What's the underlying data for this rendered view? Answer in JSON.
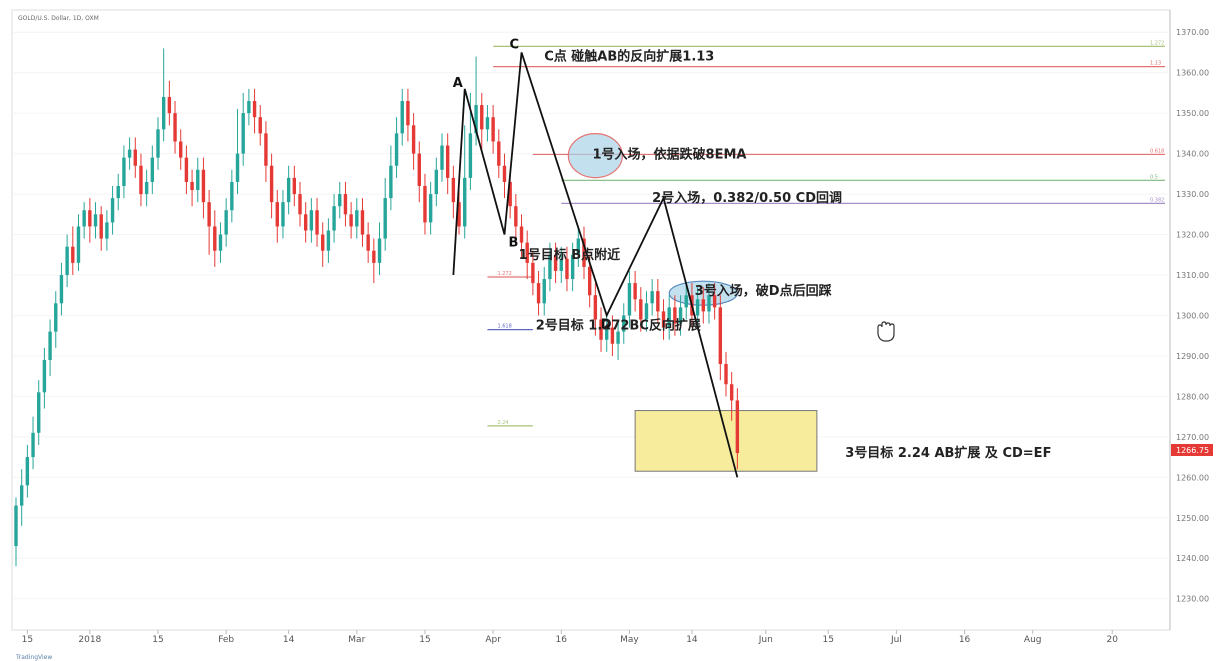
{
  "header": {
    "symbol": "GOLD/U.S. Dollar, 1D, OXM"
  },
  "footer": {
    "brand": "TradingView"
  },
  "price_tag": {
    "value": "1266.75",
    "color": "#e53935"
  },
  "colors": {
    "up": "#26a69a",
    "down": "#e53935",
    "zone": "#f6ec9c",
    "ellipse": "#a9d3e8"
  },
  "chart_data": {
    "type": "candlestick",
    "title": "GOLD/U.S. Dollar, 1D, OXM",
    "ylim": [
      1223,
      1375
    ],
    "y_ticks": [
      "1370.00",
      "1360.00",
      "1350.00",
      "1340.00",
      "1330.00",
      "1320.00",
      "1310.00",
      "1300.00",
      "1290.00",
      "1280.00",
      "1270.00",
      "1260.00",
      "1250.00",
      "1240.00",
      "1230.00"
    ],
    "y_tick_values": [
      1370,
      1360,
      1350,
      1340,
      1330,
      1320,
      1310,
      1300,
      1290,
      1280,
      1270,
      1260,
      1250,
      1240,
      1230
    ],
    "x_ticks": [
      "15",
      "2018",
      "15",
      "Feb",
      "14",
      "Mar",
      "15",
      "Apr",
      "16",
      "May",
      "14",
      "Jun",
      "15",
      "Jul",
      "16",
      "Aug",
      "20"
    ],
    "x_tick_index": [
      2,
      13,
      25,
      37,
      48,
      60,
      72,
      84,
      96,
      108,
      119,
      132,
      143,
      155,
      167,
      179,
      193
    ],
    "candles": [
      [
        1243,
        1253,
        1238,
        1255
      ],
      [
        1253,
        1258,
        1248,
        1262
      ],
      [
        1258,
        1265,
        1255,
        1268
      ],
      [
        1265,
        1271,
        1262,
        1275
      ],
      [
        1271,
        1281,
        1268,
        1284
      ],
      [
        1281,
        1289,
        1277,
        1292
      ],
      [
        1289,
        1296,
        1285,
        1299
      ],
      [
        1296,
        1303,
        1292,
        1306
      ],
      [
        1303,
        1310,
        1300,
        1313
      ],
      [
        1310,
        1317,
        1307,
        1320
      ],
      [
        1317,
        1313,
        1310,
        1322
      ],
      [
        1313,
        1322,
        1311,
        1325
      ],
      [
        1322,
        1326,
        1319,
        1328
      ],
      [
        1326,
        1322,
        1318,
        1329
      ],
      [
        1322,
        1325,
        1319,
        1328
      ],
      [
        1325,
        1319,
        1316,
        1327
      ],
      [
        1319,
        1323,
        1316,
        1326
      ],
      [
        1323,
        1329,
        1320,
        1332
      ],
      [
        1329,
        1332,
        1326,
        1335
      ],
      [
        1332,
        1339,
        1329,
        1342
      ],
      [
        1339,
        1341,
        1336,
        1344
      ],
      [
        1341,
        1337,
        1334,
        1344
      ],
      [
        1337,
        1330,
        1327,
        1340
      ],
      [
        1330,
        1333,
        1327,
        1336
      ],
      [
        1333,
        1339,
        1330,
        1342
      ],
      [
        1339,
        1346,
        1336,
        1349
      ],
      [
        1346,
        1354,
        1343,
        1366
      ],
      [
        1354,
        1350,
        1347,
        1358
      ],
      [
        1350,
        1343,
        1340,
        1353
      ],
      [
        1343,
        1339,
        1336,
        1346
      ],
      [
        1339,
        1333,
        1330,
        1342
      ],
      [
        1333,
        1331,
        1327,
        1336
      ],
      [
        1331,
        1336,
        1328,
        1339
      ],
      [
        1336,
        1328,
        1324,
        1339
      ],
      [
        1328,
        1322,
        1315,
        1331
      ],
      [
        1322,
        1316,
        1312,
        1326
      ],
      [
        1316,
        1320,
        1313,
        1323
      ],
      [
        1320,
        1326,
        1317,
        1329
      ],
      [
        1326,
        1333,
        1323,
        1336
      ],
      [
        1333,
        1340,
        1330,
        1351
      ],
      [
        1340,
        1350,
        1337,
        1355
      ],
      [
        1350,
        1353,
        1347,
        1356
      ],
      [
        1353,
        1349,
        1345,
        1356
      ],
      [
        1349,
        1345,
        1342,
        1352
      ],
      [
        1345,
        1337,
        1333,
        1348
      ],
      [
        1337,
        1328,
        1324,
        1340
      ],
      [
        1328,
        1322,
        1318,
        1331
      ],
      [
        1322,
        1328,
        1319,
        1331
      ],
      [
        1328,
        1334,
        1325,
        1337
      ],
      [
        1334,
        1330,
        1327,
        1337
      ],
      [
        1330,
        1325,
        1322,
        1333
      ],
      [
        1325,
        1321,
        1318,
        1328
      ],
      [
        1321,
        1326,
        1318,
        1329
      ],
      [
        1326,
        1320,
        1317,
        1329
      ],
      [
        1320,
        1316,
        1312,
        1323
      ],
      [
        1316,
        1321,
        1313,
        1324
      ],
      [
        1321,
        1327,
        1318,
        1330
      ],
      [
        1327,
        1330,
        1324,
        1333
      ],
      [
        1330,
        1325,
        1322,
        1333
      ],
      [
        1325,
        1322,
        1319,
        1328
      ],
      [
        1322,
        1326,
        1319,
        1329
      ],
      [
        1326,
        1320,
        1317,
        1329
      ],
      [
        1320,
        1316,
        1313,
        1323
      ],
      [
        1316,
        1313,
        1308,
        1319
      ],
      [
        1313,
        1319,
        1310,
        1323
      ],
      [
        1319,
        1329,
        1316,
        1334
      ],
      [
        1329,
        1337,
        1326,
        1342
      ],
      [
        1337,
        1345,
        1334,
        1349
      ],
      [
        1345,
        1353,
        1342,
        1356
      ],
      [
        1353,
        1347,
        1343,
        1356
      ],
      [
        1347,
        1340,
        1336,
        1350
      ],
      [
        1340,
        1332,
        1328,
        1343
      ],
      [
        1332,
        1323,
        1320,
        1335
      ],
      [
        1323,
        1330,
        1320,
        1333
      ],
      [
        1330,
        1336,
        1327,
        1339
      ],
      [
        1336,
        1342,
        1333,
        1345
      ],
      [
        1342,
        1334,
        1330,
        1345
      ],
      [
        1334,
        1328,
        1324,
        1337
      ],
      [
        1328,
        1322,
        1320,
        1331
      ],
      [
        1322,
        1334,
        1319,
        1347
      ],
      [
        1334,
        1345,
        1331,
        1355
      ],
      [
        1345,
        1352,
        1342,
        1364
      ],
      [
        1352,
        1346,
        1341,
        1355
      ],
      [
        1346,
        1349,
        1343,
        1352
      ],
      [
        1349,
        1343,
        1340,
        1352
      ],
      [
        1343,
        1337,
        1334,
        1346
      ],
      [
        1337,
        1333,
        1329,
        1340
      ],
      [
        1333,
        1327,
        1324,
        1336
      ],
      [
        1327,
        1322,
        1318,
        1330
      ],
      [
        1322,
        1318,
        1314,
        1325
      ],
      [
        1318,
        1313,
        1309,
        1321
      ],
      [
        1313,
        1308,
        1305,
        1316
      ],
      [
        1308,
        1303,
        1300,
        1311
      ],
      [
        1303,
        1309,
        1300,
        1312
      ],
      [
        1309,
        1315,
        1306,
        1318
      ],
      [
        1315,
        1311,
        1308,
        1318
      ],
      [
        1311,
        1314,
        1308,
        1317
      ],
      [
        1314,
        1309,
        1306,
        1317
      ],
      [
        1309,
        1315,
        1306,
        1318
      ],
      [
        1315,
        1319,
        1312,
        1322
      ],
      [
        1319,
        1312,
        1309,
        1322
      ],
      [
        1312,
        1305,
        1302,
        1315
      ],
      [
        1305,
        1299,
        1295,
        1308
      ],
      [
        1299,
        1294,
        1291,
        1302
      ],
      [
        1294,
        1297,
        1291,
        1300
      ],
      [
        1297,
        1293,
        1290,
        1300
      ],
      [
        1293,
        1296,
        1289,
        1299
      ],
      [
        1296,
        1300,
        1293,
        1303
      ],
      [
        1300,
        1308,
        1297,
        1311
      ],
      [
        1308,
        1304,
        1301,
        1311
      ],
      [
        1304,
        1299,
        1296,
        1307
      ],
      [
        1299,
        1303,
        1296,
        1306
      ],
      [
        1303,
        1306,
        1300,
        1309
      ],
      [
        1306,
        1301,
        1298,
        1309
      ],
      [
        1301,
        1297,
        1294,
        1304
      ],
      [
        1297,
        1302,
        1294,
        1305
      ],
      [
        1302,
        1298,
        1295,
        1305
      ],
      [
        1298,
        1302,
        1295,
        1305
      ],
      [
        1302,
        1305,
        1299,
        1308
      ],
      [
        1305,
        1300,
        1297,
        1308
      ],
      [
        1300,
        1304,
        1297,
        1307
      ],
      [
        1304,
        1301,
        1298,
        1307
      ],
      [
        1301,
        1305,
        1298,
        1308
      ],
      [
        1305,
        1302,
        1299,
        1308
      ],
      [
        1302,
        1288,
        1284,
        1305
      ],
      [
        1288,
        1283,
        1280,
        1291
      ],
      [
        1283,
        1279,
        1274,
        1286
      ],
      [
        1279,
        1266,
        1262,
        1282
      ]
    ],
    "fib_levels": [
      {
        "label": "1.272",
        "value": 1366.5,
        "color": "#a7c27a"
      },
      {
        "label": "1.13",
        "value": 1361.5,
        "color": "#e57373"
      },
      {
        "label": "0.618",
        "value": 1339.8,
        "color": "#e57373"
      },
      {
        "label": "0.5",
        "value": 1333.4,
        "color": "#7cb87c"
      },
      {
        "label": "0.382",
        "value": 1327.7,
        "color": "#a58fc9"
      },
      {
        "label": "1.272",
        "value": 1309.5,
        "color": "#e57373"
      },
      {
        "label": "1.618",
        "value": 1296.5,
        "color": "#5c6bc0"
      },
      {
        "label": "2.24",
        "value": 1272.7,
        "color": "#a7c27a"
      }
    ],
    "pattern_points": [
      {
        "label": "A",
        "idx": 79,
        "price": 1356
      },
      {
        "label": "B",
        "idx": 86,
        "price": 1320
      },
      {
        "label": "C",
        "idx": 89,
        "price": 1365
      },
      {
        "label": "D",
        "idx": 104,
        "price": 1300
      },
      {
        "label": "",
        "idx": 114,
        "price": 1329
      },
      {
        "label": "",
        "idx": 127,
        "price": 1260
      }
    ],
    "zone": {
      "idx0": 109,
      "idx1": 141,
      "p0": 1276.5,
      "p1": 1261.5
    },
    "annotations": [
      {
        "text": "C点 碰触AB的反向扩展1.13",
        "idx": 93,
        "price": 1364
      },
      {
        "text": "1号入场，依据跌破8EMA",
        "idx": 101.5,
        "price": 1339.8
      },
      {
        "text": "2号入场，0.382/0.50 CD回调",
        "idx": 112,
        "price": 1329
      },
      {
        "text": "1号目标 B点附近",
        "idx": 88.5,
        "price": 1315
      },
      {
        "text": "3号入场，破D点后回踩",
        "idx": 119.5,
        "price": 1306
      },
      {
        "text": "2号目标 1.272BC反向扩展",
        "idx": 91.5,
        "price": 1297.5
      },
      {
        "text": "3号目标 2.24 AB扩展 及 CD=EF",
        "idx": 146,
        "price": 1266
      }
    ]
  }
}
